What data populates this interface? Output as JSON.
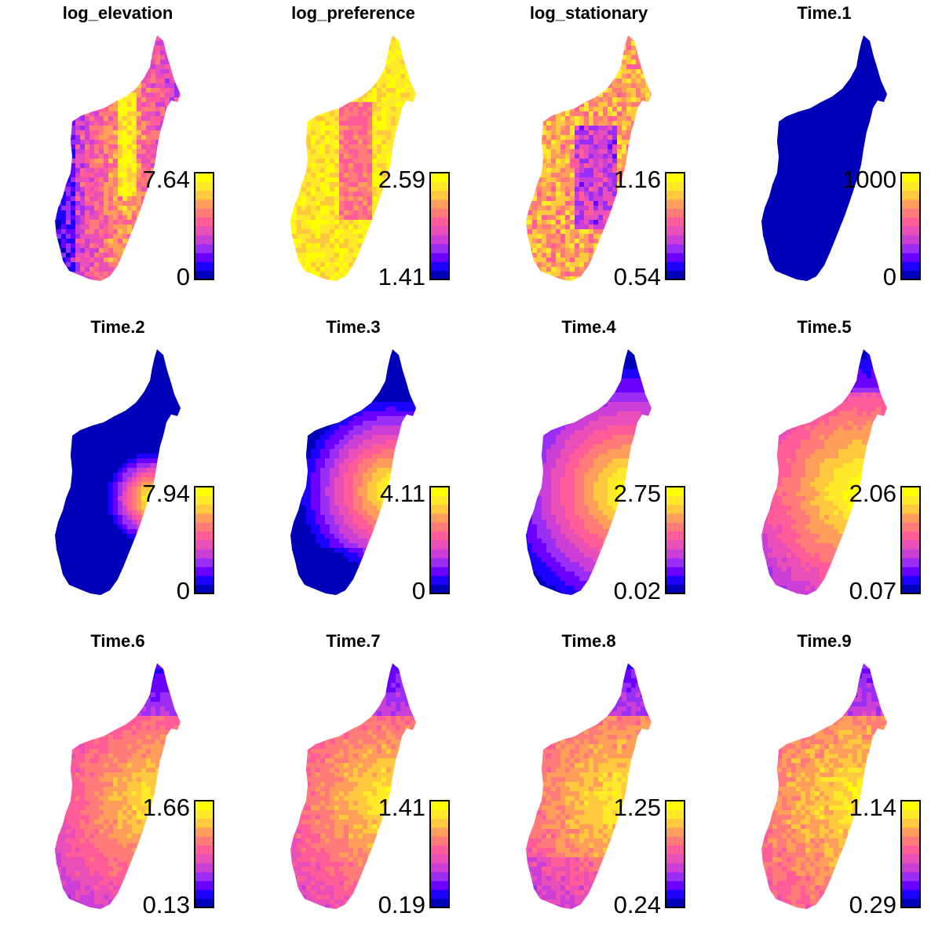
{
  "palette": [
    "#0000b8",
    "#1e00ff",
    "#6a00ff",
    "#9b2ef5",
    "#cc3fd6",
    "#e84fb8",
    "#ff5c99",
    "#ff7b7a",
    "#ff9e5b",
    "#ffc93f",
    "#ffe92a",
    "#ffff00"
  ],
  "panels": [
    {
      "title": "log_elevation",
      "legend_max": "7.64",
      "legend_min": "0",
      "field": "elev"
    },
    {
      "title": "log_preference",
      "legend_max": "2.59",
      "legend_min": "1.41",
      "field": "pref"
    },
    {
      "title": "log_stationary",
      "legend_max": "1.16",
      "legend_min": "0.54",
      "field": "stat"
    },
    {
      "title": "Time.1",
      "legend_max": "1000",
      "legend_min": "0",
      "field": "t1"
    },
    {
      "title": "Time.2",
      "legend_max": "7.94",
      "legend_min": "0",
      "field": "t2"
    },
    {
      "title": "Time.3",
      "legend_max": "4.11",
      "legend_min": "0",
      "field": "t3"
    },
    {
      "title": "Time.4",
      "legend_max": "2.75",
      "legend_min": "0.02",
      "field": "t4"
    },
    {
      "title": "Time.5",
      "legend_max": "2.06",
      "legend_min": "0.07",
      "field": "t5"
    },
    {
      "title": "Time.6",
      "legend_max": "1.66",
      "legend_min": "0.13",
      "field": "t6"
    },
    {
      "title": "Time.7",
      "legend_max": "1.41",
      "legend_min": "0.19",
      "field": "t7"
    },
    {
      "title": "Time.8",
      "legend_max": "1.25",
      "legend_min": "0.24",
      "field": "t8"
    },
    {
      "title": "Time.9",
      "legend_max": "1.14",
      "legend_min": "0.29",
      "field": "t9"
    }
  ]
}
